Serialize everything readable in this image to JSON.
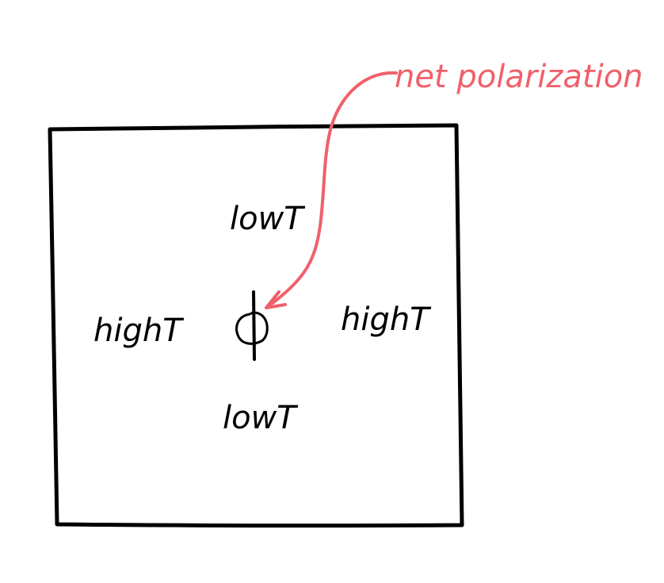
{
  "labels": {
    "top": "lowT",
    "bottom": "lowT",
    "left": "highT",
    "right": "highT",
    "annotation": "net polarization"
  },
  "colors": {
    "ink": "#000000",
    "annotation": "#f0606a",
    "background": "#ffffff"
  }
}
